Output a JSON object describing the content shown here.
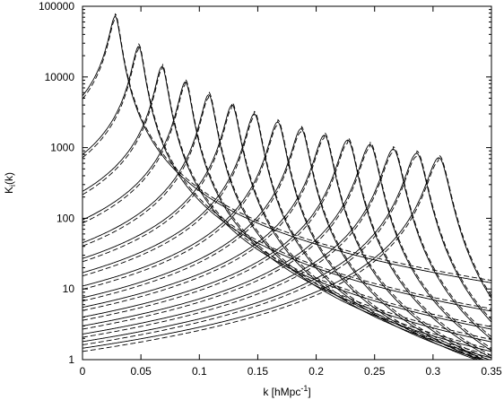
{
  "chart_data": {
    "type": "line",
    "title": "",
    "xlabel": "k [hMpc",
    "xlabel_sup": "-1",
    "xlabel_end": "]",
    "ylabel": "K",
    "ylabel_sub": "i",
    "ylabel_end": "(k)",
    "xlim": [
      0,
      0.35
    ],
    "ylim": [
      1,
      100000
    ],
    "yscale": "log",
    "grid": false,
    "legend": "none",
    "x_ticks": [
      "0",
      "0.05",
      "0.1",
      "0.15",
      "0.2",
      "0.25",
      "0.3",
      "0.35"
    ],
    "y_ticks": [
      "1",
      "10",
      "100",
      "1000",
      "10000",
      "100000"
    ],
    "line_styles": [
      "solid",
      "dashed"
    ],
    "curve_family": {
      "description_of_shape": "asymmetric peaked kernels; one solid and one dashed curve per band",
      "peak_k": [
        0.028,
        0.048,
        0.068,
        0.088,
        0.108,
        0.128,
        0.147,
        0.167,
        0.187,
        0.207,
        0.227,
        0.246,
        0.266,
        0.286,
        0.305
      ],
      "peak_value": [
        72000,
        27000,
        14000,
        8500,
        5600,
        4000,
        3000,
        2300,
        1850,
        1500,
        1280,
        1100,
        950,
        830,
        720
      ],
      "value_at_k0": [
        5400,
        800,
        240,
        95,
        45,
        27,
        17,
        11,
        7.5,
        5.5,
        4,
        3,
        2.3,
        1.8,
        1.45
      ]
    }
  }
}
